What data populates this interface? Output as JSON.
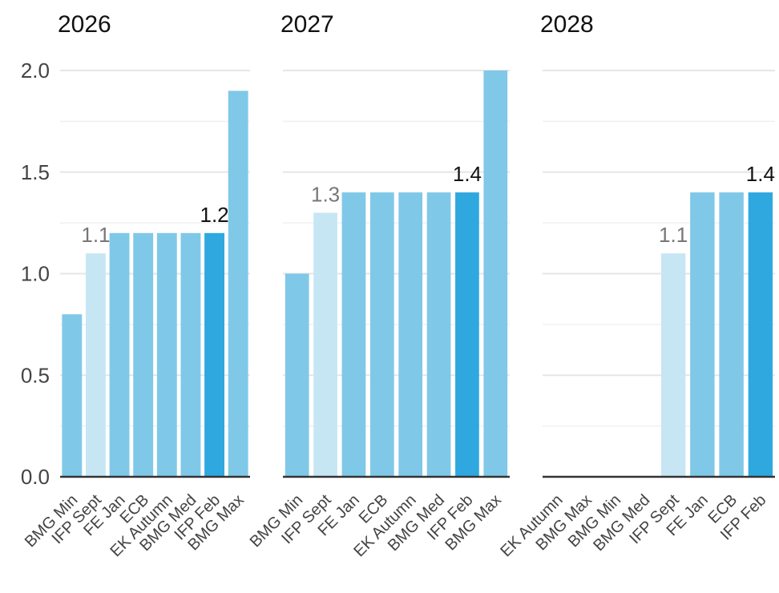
{
  "chart_data": {
    "type": "bar",
    "layout": "small-multiples",
    "ylim": [
      0,
      2.0
    ],
    "yticks": [
      "0.0",
      "0.5",
      "1.0",
      "1.5",
      "2.0"
    ],
    "grid": true,
    "colors": {
      "default": "#80c8e8",
      "ifp_sept": "#c7e6f4",
      "ifp_feb": "#2fa8df",
      "baseline": "#333333"
    },
    "panels": [
      {
        "title": "2026",
        "categories": [
          "BMG Min",
          "IFP Sept",
          "FE Jan",
          "ECB",
          "EK Autumn",
          "BMG Med",
          "IFP Feb",
          "BMG Max"
        ],
        "values": [
          0.8,
          1.1,
          1.2,
          1.2,
          1.2,
          1.2,
          1.2,
          1.9
        ],
        "labels": [
          {
            "category": "IFP Sept",
            "text": "1.1",
            "style": "light"
          },
          {
            "category": "IFP Feb",
            "text": "1.2",
            "style": "dark"
          }
        ]
      },
      {
        "title": "2027",
        "categories": [
          "BMG Min",
          "IFP Sept",
          "FE Jan",
          "ECB",
          "EK Autumn",
          "BMG Med",
          "IFP Feb",
          "BMG Max"
        ],
        "values": [
          1.0,
          1.3,
          1.4,
          1.4,
          1.4,
          1.4,
          1.4,
          2.0
        ],
        "labels": [
          {
            "category": "IFP Sept",
            "text": "1.3",
            "style": "light"
          },
          {
            "category": "IFP Feb",
            "text": "1.4",
            "style": "dark"
          }
        ]
      },
      {
        "title": "2028",
        "categories": [
          "EK Autumn",
          "BMG Max",
          "BMG Min",
          "BMG Med",
          "IFP Sept",
          "FE Jan",
          "ECB",
          "IFP Feb"
        ],
        "values": [
          null,
          null,
          null,
          null,
          1.1,
          1.4,
          1.4,
          1.4
        ],
        "labels": [
          {
            "category": "IFP Sept",
            "text": "1.1",
            "style": "light"
          },
          {
            "category": "IFP Feb",
            "text": "1.4",
            "style": "dark"
          }
        ]
      }
    ]
  }
}
